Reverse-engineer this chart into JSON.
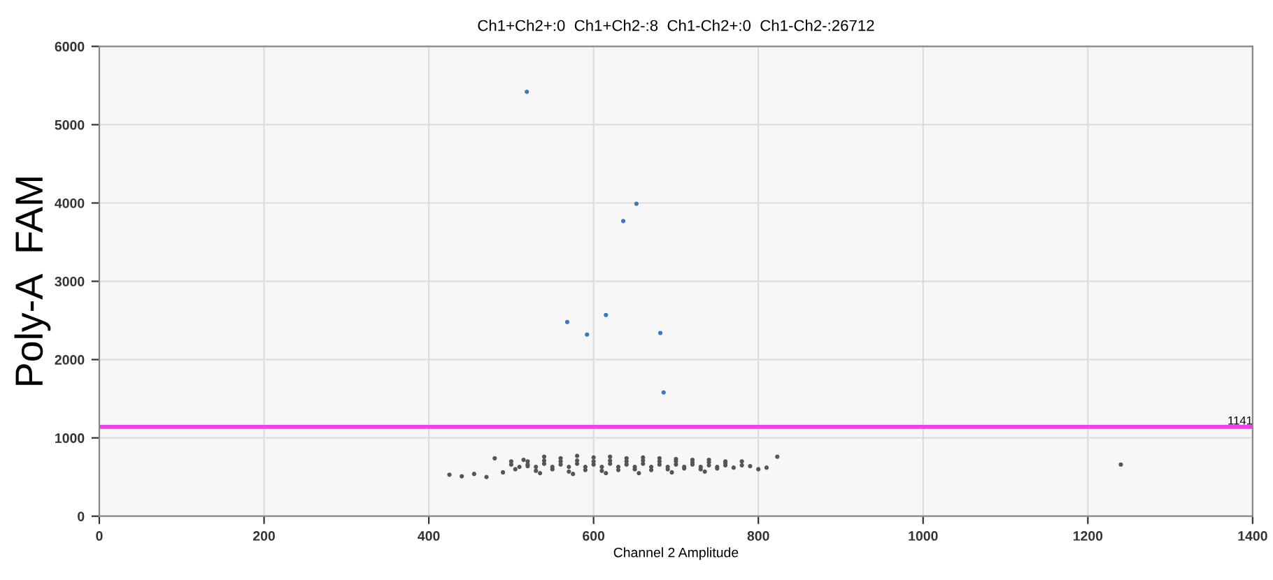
{
  "chart_data": {
    "type": "scatter",
    "title": "Ch1+Ch2+:0  Ch1+Ch2-:8  Ch1-Ch2+:0  Ch1-Ch2-:26712",
    "xlabel": "Channel 2 Amplitude",
    "ylabel": "Poly-A  FAM",
    "xlim": [
      0,
      1400
    ],
    "ylim": [
      0,
      6000
    ],
    "xticks": [
      0,
      200,
      400,
      600,
      800,
      1000,
      1200,
      1400
    ],
    "yticks": [
      0,
      1000,
      2000,
      3000,
      4000,
      5000,
      6000
    ],
    "grid": true,
    "legend": false,
    "marker": "circle",
    "series": [
      {
        "color": "#3a78c0",
        "x": [
          519,
          568,
          592,
          615,
          636,
          652,
          681,
          685
        ],
        "values": [
          5420,
          2480,
          2320,
          2570,
          3770,
          3990,
          2340,
          1580
        ]
      },
      {
        "color": "#555555",
        "x": [
          425,
          440,
          455,
          470,
          480,
          490,
          505,
          515,
          520,
          530,
          540,
          550,
          560,
          570,
          580,
          590,
          600,
          610,
          620,
          630,
          640,
          650,
          660,
          670,
          680,
          690,
          700,
          710,
          720,
          730,
          740,
          750,
          760,
          770,
          780,
          790,
          800,
          810,
          823,
          500,
          520,
          540,
          560,
          580,
          600,
          620,
          640,
          660,
          680,
          700,
          720,
          740,
          760,
          780,
          500,
          520,
          540,
          560,
          580,
          600,
          620,
          640,
          660,
          680,
          700,
          720,
          740,
          760,
          510,
          530,
          550,
          570,
          590,
          610,
          630,
          650,
          670,
          690,
          710,
          730,
          750,
          535,
          575,
          615,
          655,
          695,
          735,
          1240
        ],
        "values": [
          530,
          510,
          540,
          500,
          740,
          560,
          600,
          720,
          640,
          580,
          760,
          600,
          740,
          570,
          770,
          590,
          750,
          580,
          760,
          590,
          740,
          600,
          750,
          590,
          740,
          600,
          730,
          610,
          720,
          600,
          720,
          610,
          700,
          620,
          700,
          640,
          600,
          620,
          760,
          660,
          660,
          670,
          660,
          670,
          660,
          670,
          660,
          670,
          660,
          660,
          660,
          650,
          650,
          650,
          700,
          700,
          710,
          700,
          710,
          700,
          710,
          700,
          710,
          700,
          700,
          690,
          690,
          680,
          630,
          630,
          630,
          630,
          630,
          630,
          630,
          630,
          630,
          630,
          630,
          630,
          630,
          550,
          540,
          550,
          550,
          560,
          570,
          660
        ]
      }
    ],
    "ref_lines": [
      {
        "axis": "y",
        "value": 1141,
        "label": "1141",
        "color": "#ee40ee",
        "line_style": "solid"
      }
    ]
  }
}
